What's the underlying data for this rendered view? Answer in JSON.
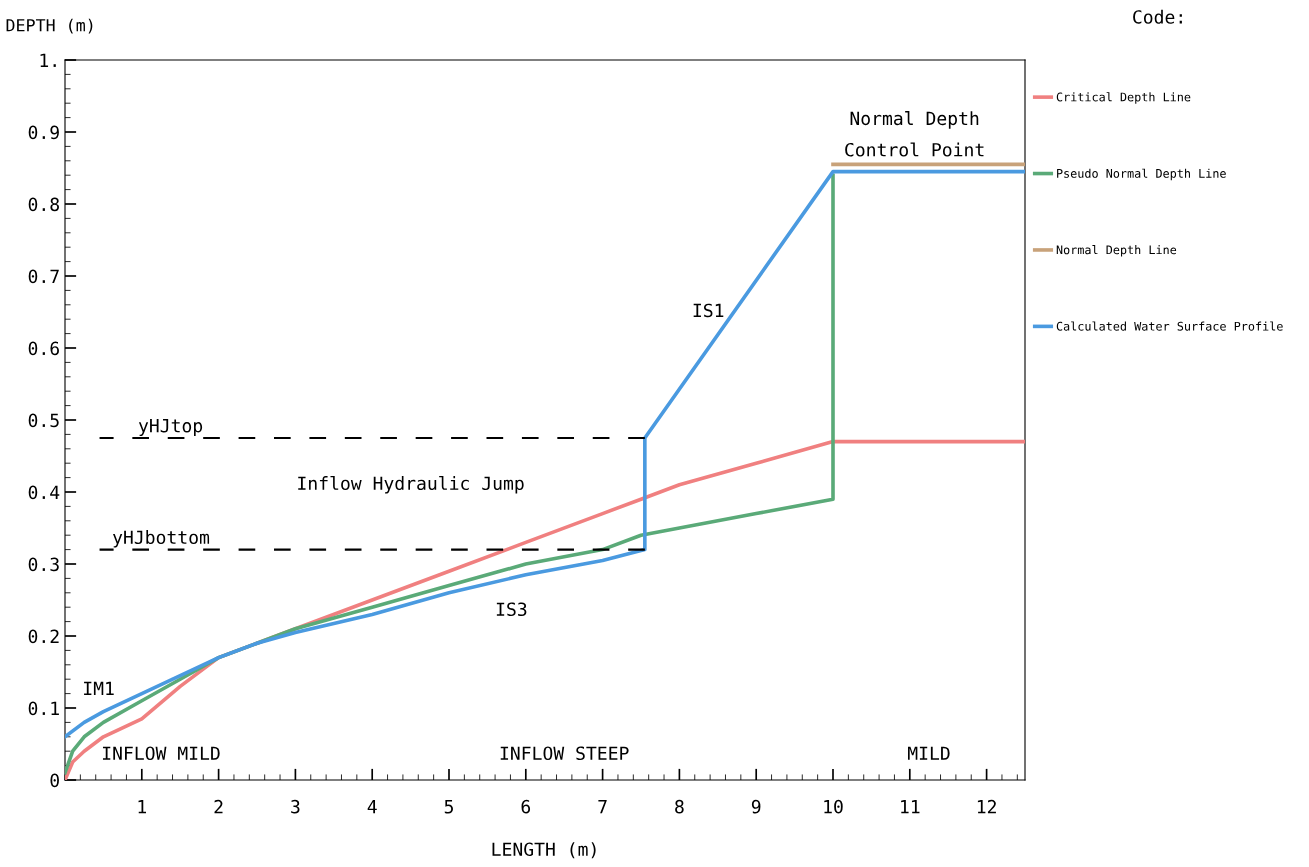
{
  "chart_data": {
    "type": "line",
    "xlabel": "LENGTH (m)",
    "ylabel": "DEPTH (m)",
    "legend_title": "Code:",
    "legend": "right",
    "grid": false,
    "xlim": [
      0,
      12.5
    ],
    "ylim": [
      0,
      1
    ],
    "xticks": [
      1,
      2,
      3,
      4,
      5,
      6,
      7,
      8,
      9,
      10,
      11,
      12
    ],
    "yticks": [
      0,
      0.1,
      0.2,
      0.3,
      0.4,
      0.5,
      0.6,
      0.7,
      0.8,
      0.9,
      {
        "value": 1,
        "label": "1."
      }
    ],
    "series": [
      {
        "name": "Critical Depth Line",
        "color": "#f08080",
        "x": [
          0,
          0.1,
          0.25,
          0.5,
          1,
          1.5,
          2,
          2.5,
          3,
          4,
          5,
          6,
          7,
          7.5,
          8,
          9,
          10,
          12.5
        ],
        "values": [
          0,
          0.025,
          0.04,
          0.06,
          0.085,
          0.13,
          0.17,
          0.19,
          0.21,
          0.25,
          0.29,
          0.33,
          0.37,
          0.39,
          0.41,
          0.44,
          0.47,
          0.47
        ]
      },
      {
        "name": "Pseudo Normal Depth Line",
        "color": "#5aaa78",
        "x": [
          0,
          0.1,
          0.25,
          0.5,
          1,
          1.5,
          2,
          2.5,
          3,
          4,
          5,
          6,
          7,
          7.5,
          8,
          9,
          10,
          10
        ],
        "values": [
          0.01,
          0.04,
          0.06,
          0.08,
          0.11,
          0.14,
          0.17,
          0.19,
          0.21,
          0.24,
          0.27,
          0.3,
          0.32,
          0.34,
          0.35,
          0.37,
          0.39,
          0.84
        ]
      },
      {
        "name": "Normal Depth Line",
        "color": "#c8a27a",
        "x": [
          10,
          12.5
        ],
        "values": [
          0.855,
          0.855
        ]
      },
      {
        "name": "Calculated Water Surface Profile",
        "color": "#4a9ae0",
        "x": [
          0,
          0.25,
          0.5,
          1,
          1.5,
          2,
          2.5,
          3,
          4,
          5,
          6,
          7,
          7.55,
          7.55,
          10,
          12.5
        ],
        "values": [
          0.06,
          0.08,
          0.095,
          0.12,
          0.145,
          0.17,
          0.19,
          0.205,
          0.23,
          0.26,
          0.285,
          0.305,
          0.32,
          0.475,
          0.845,
          0.845
        ]
      },
      {
        "color": "#000000",
        "line_style": "dashed",
        "x": [
          7.55,
          0.45
        ],
        "values": [
          0.475,
          0.475
        ]
      },
      {
        "color": "#000000",
        "line_style": "dashed",
        "x": [
          7.55,
          0.45
        ],
        "values": [
          0.32,
          0.32
        ]
      }
    ],
    "annotations": [
      "Normal Depth\nControl Point",
      "yHJtop",
      "yHJbottom",
      "Inflow Hydraulic Jump",
      "IS1",
      "IS3",
      "IM1",
      "INFLOW MILD",
      "INFLOW STEEP",
      "MILD"
    ]
  }
}
